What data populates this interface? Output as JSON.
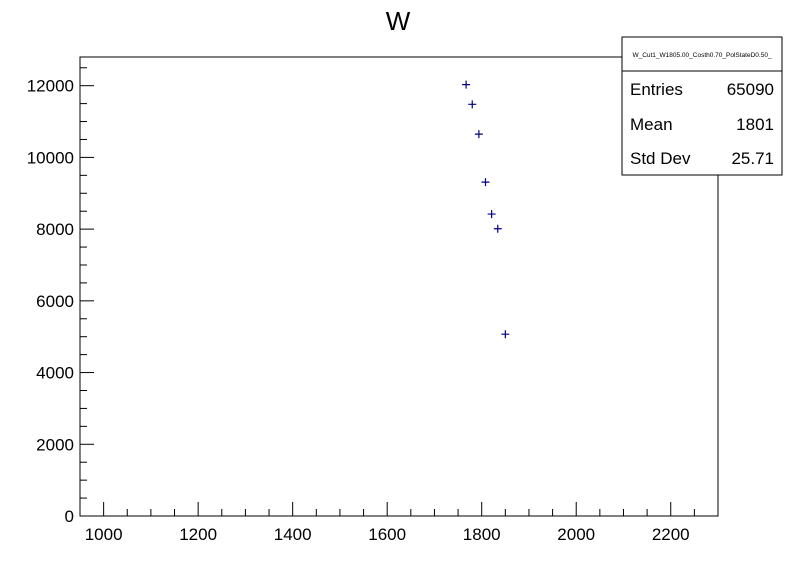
{
  "chart_data": {
    "type": "scatter",
    "title": "W",
    "xlabel": "",
    "ylabel": "",
    "xlim": [
      950,
      2300
    ],
    "ylim": [
      0,
      12800
    ],
    "x_major_ticks": [
      1000,
      1200,
      1400,
      1600,
      1800,
      2000,
      2200
    ],
    "x_tick_labels": [
      "1000",
      "1200",
      "1400",
      "1600",
      "1800",
      "2000",
      "2200"
    ],
    "x_minor_step": 50,
    "y_major_ticks": [
      0,
      2000,
      4000,
      6000,
      8000,
      10000,
      12000
    ],
    "y_tick_labels": [
      "0",
      "2000",
      "4000",
      "6000",
      "8000",
      "10000",
      "12000"
    ],
    "y_minor_step": 500,
    "grid": false,
    "legend": "none",
    "marker_color": "#000080",
    "points": [
      {
        "x": 1767,
        "y": 12030
      },
      {
        "x": 1780,
        "y": 11480
      },
      {
        "x": 1794,
        "y": 10650
      },
      {
        "x": 1808,
        "y": 9310
      },
      {
        "x": 1821,
        "y": 8420
      },
      {
        "x": 1834,
        "y": 8010
      },
      {
        "x": 1850,
        "y": 5070
      }
    ],
    "stats_box": {
      "name": "W_Cut1_W1805.00_Costh0.70_PolStateD0.50_",
      "position": "top-right",
      "rows": [
        {
          "label": "Entries",
          "value": "65090"
        },
        {
          "label": "Mean",
          "value": "1801"
        },
        {
          "label": "Std Dev",
          "value": "25.71"
        }
      ]
    }
  }
}
